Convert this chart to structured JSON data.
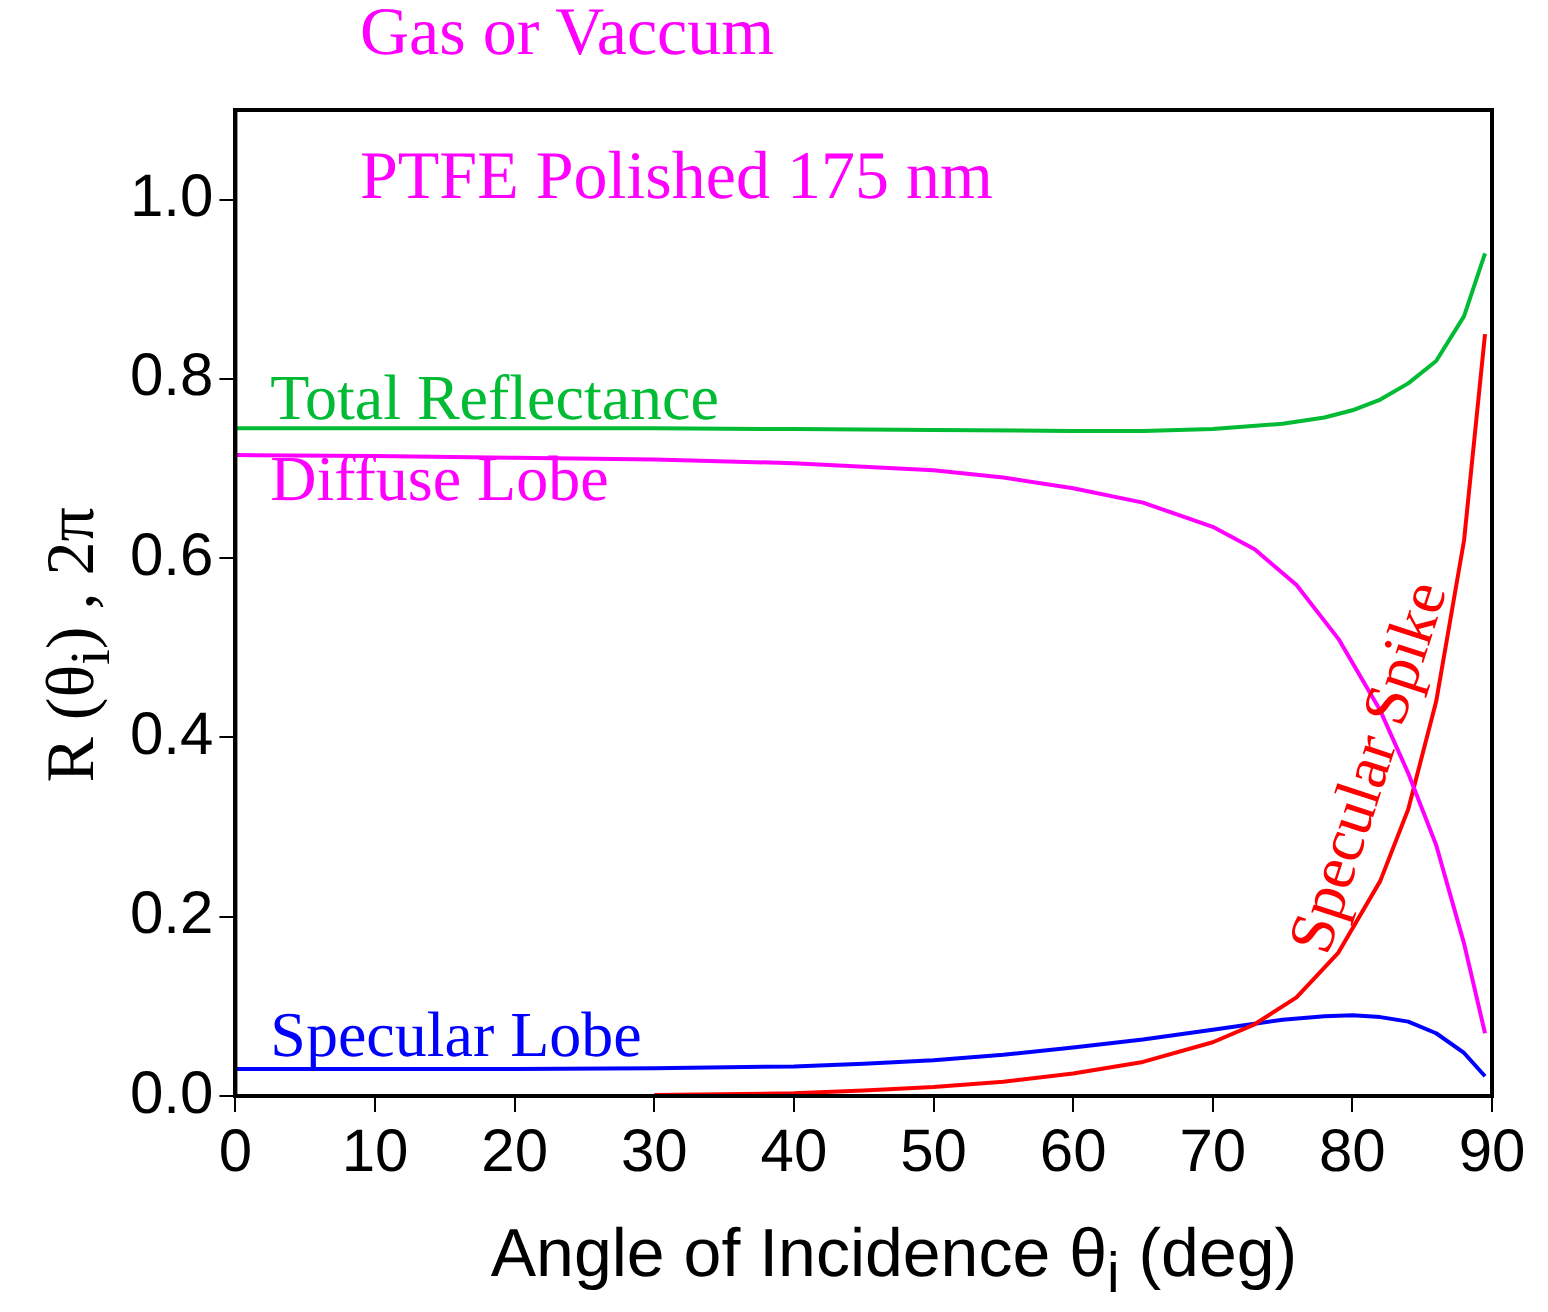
{
  "chart_data": {
    "type": "line",
    "title": "Gas or Vaccum",
    "xlabel": "Angle of Incidence θ$_{i}$ (deg)",
    "ylabel": "R (θ$_{i}$) , 2π",
    "annotations": [
      "PTFE Polished 175 nm"
    ],
    "xlim": [
      0,
      90
    ],
    "xticks": [
      0,
      10,
      20,
      30,
      40,
      50,
      60,
      70,
      80,
      90
    ],
    "ylim": [
      0,
      1.1
    ],
    "yticks": [
      {
        "value": 0,
        "label": "0.0"
      },
      {
        "value": 0.2,
        "label": "0.2"
      },
      {
        "value": 0.4,
        "label": "0.4"
      },
      {
        "value": 0.6,
        "label": "0.6"
      },
      {
        "value": 0.8,
        "label": "0.8"
      },
      {
        "value": 1,
        "label": "1.0"
      }
    ],
    "grid": false,
    "legend": false,
    "marker": "none",
    "line_style": "solid",
    "series": [
      {
        "name": "Total Reflectance",
        "color": "#00bb33",
        "x": [
          0,
          10,
          20,
          30,
          40,
          50,
          60,
          65,
          70,
          75,
          78,
          80,
          82,
          84,
          86,
          88,
          89.5
        ],
        "values": [
          0.745,
          0.745,
          0.745,
          0.745,
          0.744,
          0.743,
          0.742,
          0.742,
          0.744,
          0.75,
          0.757,
          0.765,
          0.777,
          0.795,
          0.82,
          0.87,
          0.94
        ]
      },
      {
        "name": "Diffuse Lobe",
        "color": "#ff00ff",
        "x": [
          0,
          10,
          20,
          30,
          40,
          50,
          55,
          60,
          65,
          70,
          73,
          76,
          79,
          82,
          84,
          86,
          88,
          89.5
        ],
        "values": [
          0.715,
          0.714,
          0.712,
          0.71,
          0.706,
          0.698,
          0.69,
          0.678,
          0.662,
          0.635,
          0.61,
          0.57,
          0.51,
          0.43,
          0.36,
          0.28,
          0.17,
          0.07
        ]
      },
      {
        "name": "Specular Spike",
        "color": "#ff0000",
        "x": [
          30,
          40,
          45,
          50,
          55,
          60,
          65,
          70,
          73,
          76,
          79,
          82,
          84,
          86,
          88,
          89.5
        ],
        "values": [
          0.001,
          0.003,
          0.006,
          0.01,
          0.016,
          0.025,
          0.038,
          0.06,
          0.08,
          0.11,
          0.16,
          0.24,
          0.32,
          0.44,
          0.62,
          0.85
        ]
      },
      {
        "name": "Specular Lobe",
        "color": "#0000ff",
        "x": [
          0,
          10,
          20,
          30,
          40,
          45,
          50,
          55,
          60,
          65,
          70,
          75,
          78,
          80,
          82,
          84,
          86,
          88,
          89.5
        ],
        "values": [
          0.03,
          0.03,
          0.03,
          0.031,
          0.033,
          0.036,
          0.04,
          0.046,
          0.054,
          0.063,
          0.074,
          0.085,
          0.089,
          0.09,
          0.088,
          0.083,
          0.07,
          0.048,
          0.022
        ]
      }
    ]
  }
}
